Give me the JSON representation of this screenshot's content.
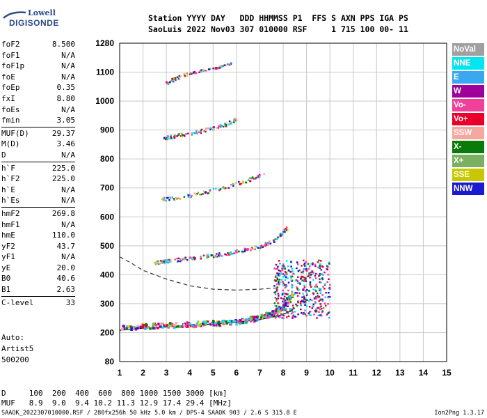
{
  "logo": {
    "line1": "Lowell",
    "line2": "DIGISONDE"
  },
  "header": {
    "labels": "Station YYYY DAY   DDD HHMMSS P1  FFS S AXN PPS IGA PS",
    "values": "SaoLuis 2022 Nov03 307 010000 RSF     1 715 100 00- 11"
  },
  "params": {
    "group1": [
      {
        "k": "foF2",
        "v": "8.500"
      },
      {
        "k": "foF1",
        "v": "N/A"
      },
      {
        "k": "foF1p",
        "v": "N/A"
      },
      {
        "k": "foE",
        "v": "N/A"
      },
      {
        "k": "foEp",
        "v": "0.35"
      },
      {
        "k": "fxI",
        "v": "8.80"
      },
      {
        "k": "foEs",
        "v": "N/A"
      },
      {
        "k": "fmin",
        "v": "3.05"
      }
    ],
    "group2": [
      {
        "k": "MUF(D)",
        "v": "29.37"
      },
      {
        "k": "M(D)",
        "v": "3.46"
      },
      {
        "k": "D",
        "v": "N/A"
      }
    ],
    "group3": [
      {
        "k": "h`F",
        "v": "225.0"
      },
      {
        "k": "h`F2",
        "v": "225.0"
      },
      {
        "k": "h`E",
        "v": "N/A"
      },
      {
        "k": "h`Es",
        "v": "N/A"
      }
    ],
    "group4": [
      {
        "k": "hmF2",
        "v": "269.8"
      },
      {
        "k": "hmF1",
        "v": "N/A"
      },
      {
        "k": "hmE",
        "v": "110.0"
      },
      {
        "k": "yF2",
        "v": "43.7"
      },
      {
        "k": "yF1",
        "v": "N/A"
      },
      {
        "k": "yE",
        "v": "20.0"
      },
      {
        "k": "B0",
        "v": "40.6"
      },
      {
        "k": "B1",
        "v": "2.63"
      }
    ],
    "group5": [
      {
        "k": "C-level",
        "v": "33"
      }
    ]
  },
  "auto": {
    "line1": "Auto:",
    "line2": "Artist5",
    "line3": "500200"
  },
  "legend": [
    {
      "label": "NoVal",
      "color": "#a0a0a0"
    },
    {
      "label": "NNE",
      "color": "#00e6f0"
    },
    {
      "label": "E",
      "color": "#3aa8f0"
    },
    {
      "label": "W",
      "color": "#a0009a"
    },
    {
      "label": "Vo-",
      "color": "#f0409a"
    },
    {
      "label": "Vo+",
      "color": "#e8002a"
    },
    {
      "label": "SSW",
      "color": "#f5a8a0"
    },
    {
      "label": "X-",
      "color": "#0a7a0a"
    },
    {
      "label": "X+",
      "color": "#7ab060"
    },
    {
      "label": "SSE",
      "color": "#c8c800"
    },
    {
      "label": "NNW",
      "color": "#1a1ad0"
    }
  ],
  "dmuf": {
    "d_line": "D     100  200  400  600  800 1000 1500 3000 [km]",
    "muf_line": "MUF   8.9  9.0  9.4 10.2 11.3 12.9 17.4 29.4 [MHz]"
  },
  "footer": {
    "text": "SAAOK_2022307010000.RSF / 280fx256h 50 kHz 5.0 km / DPS-4 SAAOK 903 / 2.6 S 315.8 E",
    "version": "Ion2Png 1.3.17"
  },
  "chart_data": {
    "type": "scatter",
    "x_ticks": [
      1,
      2,
      3,
      4,
      5,
      6,
      7,
      8,
      9,
      10,
      11,
      12,
      13,
      14,
      15
    ],
    "y_ticks": [
      80,
      200,
      300,
      400,
      500,
      600,
      700,
      800,
      900,
      1000,
      1100,
      1280
    ],
    "xlim": [
      1,
      15
    ],
    "ylim": [
      80,
      1280
    ],
    "grid": true,
    "traces": [
      {
        "name": "O-trace 1st hop",
        "x": [
          1.1,
          2.0,
          3.0,
          4.0,
          5.0,
          6.0,
          6.8,
          7.5,
          8.0,
          8.4
        ],
        "y": [
          215,
          222,
          225,
          228,
          232,
          238,
          248,
          265,
          290,
          330
        ]
      },
      {
        "name": "2nd hop",
        "x": [
          2.5,
          3.0,
          4.0,
          5.0,
          6.0,
          7.0,
          7.6,
          8.2
        ],
        "y": [
          440,
          445,
          455,
          465,
          478,
          495,
          515,
          560
        ]
      },
      {
        "name": "3rd hop",
        "x": [
          2.8,
          3.5,
          4.5,
          5.5,
          6.5,
          7.2
        ],
        "y": [
          660,
          665,
          680,
          700,
          725,
          750
        ]
      },
      {
        "name": "4th hop",
        "x": [
          2.9,
          3.5,
          4.5,
          5.5,
          6.0
        ],
        "y": [
          870,
          880,
          895,
          915,
          935
        ]
      },
      {
        "name": "5th hop",
        "x": [
          3.0,
          3.5,
          4.5,
          5.2,
          5.8
        ],
        "y": [
          1060,
          1080,
          1105,
          1125,
          1150
        ]
      }
    ],
    "profile_curve": {
      "x": [
        1.0,
        2.0,
        3.0,
        4.0,
        5.0,
        6.0,
        7.0,
        7.8,
        8.2,
        8.5
      ],
      "y": [
        208,
        215,
        220,
        225,
        230,
        236,
        245,
        258,
        270,
        285
      ]
    },
    "dashed_curve": {
      "x": [
        1.0,
        1.5,
        2.0,
        3.0,
        4.0,
        5.0,
        6.0,
        7.0,
        7.8
      ],
      "y": [
        462,
        440,
        415,
        385,
        362,
        350,
        347,
        350,
        355
      ]
    }
  }
}
